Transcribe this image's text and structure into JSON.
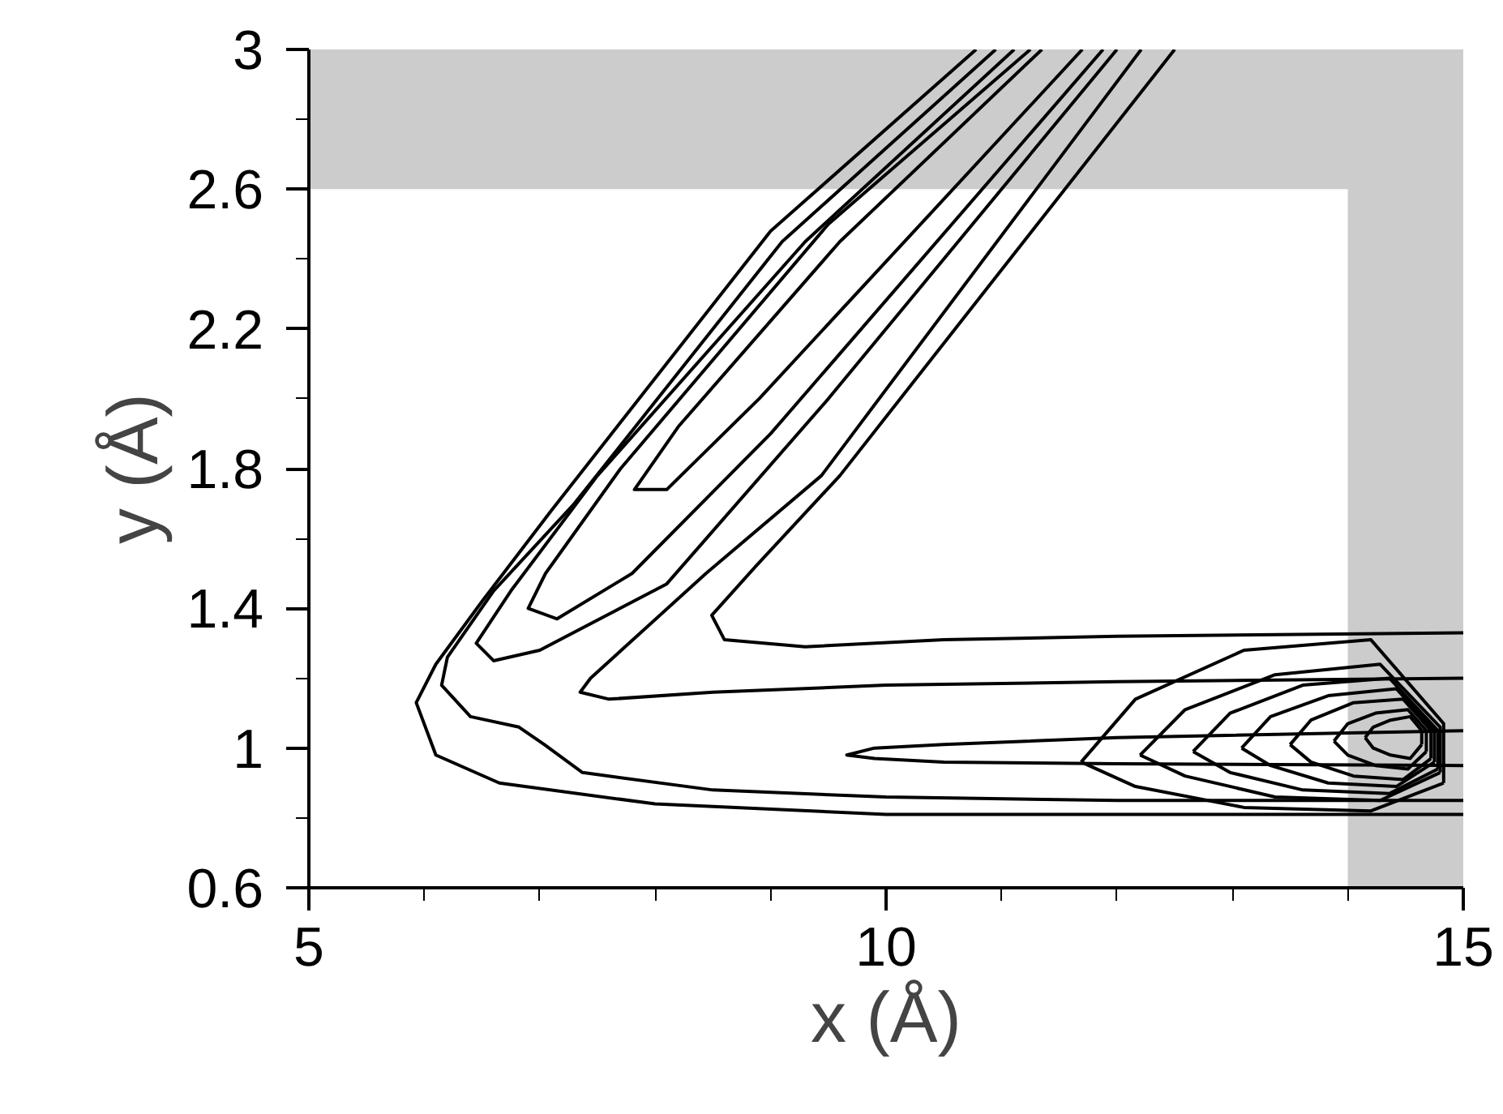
{
  "chart_data": {
    "type": "line",
    "xlabel": "x (Å)",
    "ylabel": "y (Å)",
    "xlim": [
      5,
      15
    ],
    "ylim": [
      0.6,
      3
    ],
    "xticks": [
      5,
      {
        "value": 6,
        "label": null
      },
      {
        "value": 7,
        "label": null
      },
      {
        "value": 8,
        "label": null
      },
      {
        "value": 9,
        "label": null
      },
      10,
      {
        "value": 11,
        "label": null
      },
      {
        "value": 12,
        "label": null
      },
      {
        "value": 13,
        "label": null
      },
      {
        "value": 14,
        "label": null
      },
      15
    ],
    "yticks": [
      0.6,
      {
        "value": 0.8,
        "label": null
      },
      1,
      {
        "value": 1.2,
        "label": null
      },
      1.4,
      {
        "value": 1.6,
        "label": null
      },
      1.8,
      {
        "value": 2.0,
        "label": null
      },
      2.2,
      {
        "value": 2.4,
        "label": null
      },
      2.6,
      {
        "value": 2.8,
        "label": null
      },
      3
    ],
    "grid": false,
    "marker": "none",
    "line_style": "solid",
    "bands": [
      {
        "axis": "y",
        "from": 2.6,
        "to": 3,
        "color": "#cccccc"
      },
      {
        "axis": "x",
        "from": 14,
        "to": 15,
        "color": "#cccccc"
      }
    ],
    "series": [
      {
        "color": "#000000",
        "x": [
          10.78,
          9.0,
          7.1,
          6.5,
          6.1,
          5.93,
          6.1,
          6.65,
          8,
          10,
          12,
          15
        ],
        "values": [
          3,
          2.48,
          1.68,
          1.42,
          1.24,
          1.13,
          0.98,
          0.9,
          0.84,
          0.81,
          0.81,
          0.81
        ]
      },
      {
        "color": "#000000",
        "x": [
          10.95,
          9.1,
          7.3,
          6.6,
          6.2,
          6.15,
          6.4,
          6.82,
          7.04,
          7.37,
          8.5,
          10,
          12,
          15
        ],
        "values": [
          3,
          2.45,
          1.7,
          1.45,
          1.26,
          1.18,
          1.09,
          1.06,
          1.01,
          0.93,
          0.88,
          0.86,
          0.85,
          0.85
        ]
      },
      {
        "color": "#000000",
        "x": [
          11.11,
          9.3,
          7.5,
          6.75,
          6.45,
          6.6,
          7.0,
          8.1,
          9.5,
          12.0
        ],
        "values": [
          3,
          2.45,
          1.78,
          1.45,
          1.3,
          1.25,
          1.28,
          1.47,
          2.0,
          3
        ]
      },
      {
        "color": "#000000",
        "x": [
          11.25,
          9.5,
          7.7,
          7.05,
          6.9,
          7.15,
          7.8,
          9.0,
          11.88
        ],
        "values": [
          3,
          2.5,
          1.8,
          1.5,
          1.4,
          1.37,
          1.5,
          1.9,
          3
        ]
      },
      {
        "color": "#000000",
        "x": [
          11.35,
          9.6,
          8.2,
          7.82,
          8.1,
          8.9,
          11.7
        ],
        "values": [
          3,
          2.45,
          1.92,
          1.74,
          1.74,
          2.0,
          3
        ]
      },
      {
        "color": "#000000",
        "x": [
          12.21,
          9.44,
          8.44,
          7.44,
          7.35,
          7.6,
          8.5,
          10,
          12,
          15
        ],
        "values": [
          3,
          1.78,
          1.5,
          1.2,
          1.16,
          1.14,
          1.16,
          1.18,
          1.19,
          1.2
        ]
      },
      {
        "color": "#000000",
        "x": [
          12.5,
          9.6,
          8.87,
          8.49,
          8.6,
          9.3,
          10.5,
          12,
          15
        ],
        "values": [
          3,
          1.78,
          1.52,
          1.38,
          1.31,
          1.29,
          1.31,
          1.32,
          1.33
        ]
      },
      {
        "color": "#000000",
        "x": [
          15,
          12,
          10.5,
          9.9,
          9.66,
          9.9,
          10.5,
          12,
          15
        ],
        "values": [
          1.05,
          1.03,
          1.01,
          1.0,
          0.98,
          0.97,
          0.96,
          0.955,
          0.95
        ]
      },
      {
        "color": "#000000",
        "x": [
          11.69,
          12.16,
          13.1,
          14.2,
          14.83,
          14.83
        ],
        "values": [
          0.96,
          1.14,
          1.28,
          1.31,
          1.07,
          0.9
        ]
      },
      {
        "color": "#000000",
        "x": [
          11.69,
          12.16,
          13.1,
          14.2,
          14.83
        ],
        "values": [
          0.96,
          0.89,
          0.83,
          0.82,
          0.9
        ]
      },
      {
        "color": "#000000",
        "x": [
          12.2,
          12.59,
          13.37,
          14.28,
          14.8,
          14.8
        ],
        "values": [
          0.98,
          1.11,
          1.21,
          1.24,
          1.06,
          0.93
        ]
      },
      {
        "color": "#000000",
        "x": [
          12.2,
          12.59,
          13.37,
          14.28,
          14.8
        ],
        "values": [
          0.98,
          0.92,
          0.86,
          0.85,
          0.93
        ]
      },
      {
        "color": "#000000",
        "x": [
          12.66,
          12.98,
          13.61,
          14.36,
          14.78,
          14.78
        ],
        "values": [
          0.99,
          1.1,
          1.18,
          1.2,
          1.05,
          0.94
        ]
      },
      {
        "color": "#000000",
        "x": [
          12.66,
          12.98,
          13.61,
          14.36,
          14.78
        ],
        "values": [
          0.99,
          0.93,
          0.88,
          0.87,
          0.94
        ]
      },
      {
        "color": "#000000",
        "x": [
          13.08,
          13.33,
          13.83,
          14.42,
          14.75,
          14.75
        ],
        "values": [
          1.0,
          1.09,
          1.15,
          1.17,
          1.05,
          0.96
        ]
      },
      {
        "color": "#000000",
        "x": [
          13.08,
          13.33,
          13.83,
          14.42,
          14.75
        ],
        "values": [
          1.0,
          0.95,
          0.9,
          0.89,
          0.96
        ]
      },
      {
        "color": "#000000",
        "x": [
          13.5,
          13.68,
          14.05,
          14.48,
          14.72,
          14.72
        ],
        "values": [
          1.01,
          1.08,
          1.13,
          1.14,
          1.05,
          0.97
        ]
      },
      {
        "color": "#000000",
        "x": [
          13.5,
          13.68,
          14.05,
          14.48,
          14.72
        ],
        "values": [
          1.01,
          0.96,
          0.92,
          0.91,
          0.97
        ]
      },
      {
        "color": "#000000",
        "x": [
          13.88,
          14.0,
          14.24,
          14.52,
          14.68,
          14.68
        ],
        "values": [
          1.02,
          1.07,
          1.1,
          1.11,
          1.05,
          0.99
        ]
      },
      {
        "color": "#000000",
        "x": [
          13.88,
          14.0,
          14.24,
          14.52,
          14.68
        ],
        "values": [
          1.02,
          0.98,
          0.95,
          0.94,
          0.99
        ]
      },
      {
        "color": "#000000",
        "x": [
          14.15,
          14.22,
          14.37,
          14.54,
          14.64,
          14.64
        ],
        "values": [
          1.03,
          1.06,
          1.08,
          1.09,
          1.05,
          1.01
        ]
      },
      {
        "color": "#000000",
        "x": [
          14.15,
          14.22,
          14.37,
          14.54,
          14.64
        ],
        "values": [
          1.03,
          1.0,
          0.98,
          0.97,
          1.01
        ]
      }
    ]
  }
}
